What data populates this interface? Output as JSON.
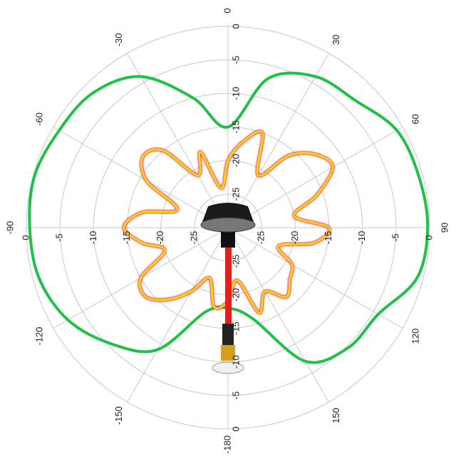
{
  "chart_data": {
    "type": "polar",
    "rlim": [
      -30,
      0
    ],
    "rticks": [
      0,
      -5,
      -10,
      -15,
      -20,
      -25
    ],
    "thetaticks": [
      0,
      30,
      60,
      90,
      120,
      150,
      -180,
      -150,
      -120,
      -90,
      -60,
      -30
    ],
    "grid": true,
    "series": [
      {
        "color": "#22c04a",
        "theta": [
          -180,
          -165,
          -150,
          -135,
          -120,
          -105,
          -90,
          -75,
          -60,
          -45,
          -30,
          -15,
          0,
          15,
          30,
          45,
          60,
          75,
          90,
          105,
          120,
          135,
          150,
          165
        ],
        "values": [
          -18,
          -17,
          -9,
          -5.5,
          -2.5,
          -0.9,
          -0.5,
          -0.2,
          -1,
          -1.6,
          -4,
          -10,
          -15,
          -7,
          -4,
          -3.2,
          -1,
          -0.6,
          -0.3,
          -0.9,
          -4.2,
          -4.7,
          -7,
          -16
        ]
      },
      {
        "color": "#ffd21f",
        "theta": [
          -180,
          -170,
          -160,
          -150,
          -140,
          -130,
          -120,
          -110,
          -100,
          -90,
          -80,
          -70,
          -60,
          -50,
          -40,
          -30,
          -20,
          -10,
          0,
          10,
          20,
          30,
          40,
          50,
          60,
          70,
          80,
          90,
          100,
          110,
          120,
          130,
          140,
          150,
          160,
          170
        ],
        "values": [
          -19,
          -18,
          -22,
          -19,
          -16,
          -14,
          -15,
          -20,
          -17,
          -14.5,
          -17,
          -22,
          -16,
          -13.5,
          -15,
          -21,
          -18,
          -24,
          -20,
          -17,
          -15,
          -21,
          -16,
          -13,
          -12,
          -16,
          -20,
          -15,
          -17,
          -22,
          -19,
          -18,
          -16.5,
          -19,
          -16.5,
          -22
        ]
      }
    ]
  }
}
